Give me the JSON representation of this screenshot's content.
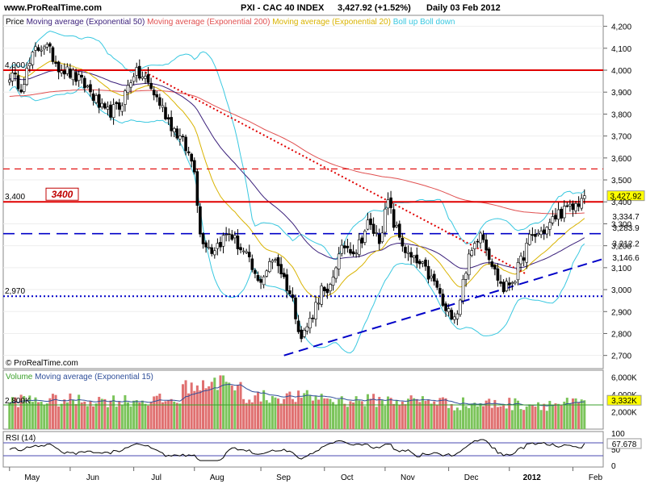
{
  "header": {
    "site": "www.ProRealTime.com",
    "instrument": "PXI - CAC 40 INDEX",
    "last": "3,427.92 (+1.52%)",
    "period": "Daily  03 Feb 2012"
  },
  "copyright": "© ProRealTime.com",
  "colors": {
    "candle_up": "#ffffff",
    "candle_down": "#000000",
    "ema50": "#3a1f7a",
    "ema200": "#e05050",
    "ema20": "#d9b300",
    "boll": "#39c8e0",
    "res_line": "#e00000",
    "support_blue": "#0000c8",
    "vol_up": "#7bc45a",
    "vol_down": "#e07070",
    "vol_ema": "#2f4f9a",
    "rsi": "#000000"
  },
  "legend": {
    "price": [
      {
        "text": "Price",
        "color": "#000000"
      },
      {
        "text": "Moving average (Exponential 50)",
        "color": "#3a1f7a"
      },
      {
        "text": "Moving average (Exponential 200)",
        "color": "#e05050"
      },
      {
        "text": "Moving average (Exponential 20)",
        "color": "#d9b300"
      },
      {
        "text": "Boll up Boll down",
        "color": "#39c8e0"
      }
    ],
    "volume": [
      {
        "text": "Volume",
        "color": "#3aa02a"
      },
      {
        "text": "Moving average (Exponential 15)",
        "color": "#2f4f9a"
      }
    ],
    "rsi": "RSI (14)"
  },
  "chart_data": {
    "type": "candlestick",
    "price_axis": {
      "ylim": [
        2640,
        4250
      ],
      "ticks": [
        "4,200",
        "4,100",
        "4,000",
        "3,900",
        "3,800",
        "3,700",
        "3,600",
        "3,500",
        "3,400",
        "3,300",
        "3,200",
        "3,100",
        "3,000",
        "2,900",
        "2,800",
        "2,700"
      ],
      "tick_values": [
        4200,
        4100,
        4000,
        3900,
        3800,
        3700,
        3600,
        3500,
        3400,
        3300,
        3200,
        3100,
        3000,
        2900,
        2800,
        2700
      ]
    },
    "months": [
      {
        "label": "May",
        "day": 0
      },
      {
        "label": "Jun",
        "day": 21
      },
      {
        "label": "Jul",
        "day": 43
      },
      {
        "label": "Aug",
        "day": 64
      },
      {
        "label": "Sep",
        "day": 87
      },
      {
        "label": "Oct",
        "day": 109
      },
      {
        "label": "Nov",
        "day": 130
      },
      {
        "label": "Dec",
        "day": 152
      },
      {
        "label": "2012",
        "day": 173
      },
      {
        "label": "Feb",
        "day": 195
      }
    ],
    "days": 199,
    "close_anchors": [
      [
        0,
        3980
      ],
      [
        4,
        3930
      ],
      [
        9,
        4090
      ],
      [
        12,
        4120
      ],
      [
        17,
        4020
      ],
      [
        22,
        3975
      ],
      [
        27,
        3920
      ],
      [
        33,
        3800
      ],
      [
        38,
        3830
      ],
      [
        43,
        3990
      ],
      [
        47,
        3960
      ],
      [
        52,
        3850
      ],
      [
        56,
        3750
      ],
      [
        60,
        3670
      ],
      [
        64,
        3560
      ],
      [
        66,
        3250
      ],
      [
        70,
        3180
      ],
      [
        76,
        3260
      ],
      [
        82,
        3150
      ],
      [
        86,
        3030
      ],
      [
        92,
        3150
      ],
      [
        98,
        2950
      ],
      [
        101,
        2780
      ],
      [
        104,
        2860
      ],
      [
        108,
        3000
      ],
      [
        110,
        2960
      ],
      [
        113,
        3120
      ],
      [
        116,
        3200
      ],
      [
        120,
        3180
      ],
      [
        124,
        3300
      ],
      [
        128,
        3230
      ],
      [
        131,
        3400
      ],
      [
        133,
        3300
      ],
      [
        138,
        3150
      ],
      [
        143,
        3100
      ],
      [
        148,
        3010
      ],
      [
        151,
        2890
      ],
      [
        155,
        2900
      ],
      [
        158,
        3100
      ],
      [
        163,
        3280
      ],
      [
        168,
        3080
      ],
      [
        171,
        3000
      ],
      [
        175,
        3060
      ],
      [
        180,
        3230
      ],
      [
        186,
        3280
      ],
      [
        190,
        3350
      ],
      [
        195,
        3370
      ],
      [
        199,
        3428
      ]
    ],
    "levels": [
      {
        "name": "resistance-4000",
        "value": 4000,
        "label": "4,000",
        "style": "solid"
      },
      {
        "name": "resistance-dashed",
        "value": 3550,
        "label": "",
        "style": "dashed"
      },
      {
        "name": "resistance-3400",
        "value": 3400,
        "label": "3,400",
        "style": "solid"
      },
      {
        "name": "support-dashed-blue",
        "value": 3255,
        "label": "",
        "style": "dashed"
      },
      {
        "name": "support-2970",
        "value": 2970,
        "label": "2,970",
        "style": "dotted"
      }
    ],
    "annotation_box": "3400",
    "trend_down": {
      "from": [
        47,
        3990
      ],
      "to": [
        179,
        3070
      ]
    },
    "trend_up": {
      "from": [
        95,
        2700
      ],
      "to": [
        199,
        3140
      ]
    },
    "right_labels": [
      {
        "text": "3,427.92",
        "value": 3427.92,
        "bg": "#ffff00",
        "color": "#000000"
      },
      {
        "text": "3,334.7",
        "value": 3334.7,
        "bg": "#ffffff",
        "color": "#e05050"
      },
      {
        "text": "3,283.9",
        "value": 3283.9,
        "bg": "#ffffff",
        "color": "#d9b300"
      },
      {
        "text": "3,212.2",
        "value": 3212.2,
        "bg": "#ffffff",
        "color": "#3a1f7a"
      },
      {
        "text": "3,146.6",
        "value": 3146.6,
        "bg": "#ffffff",
        "color": "#39c8e0"
      }
    ],
    "volume_axis": {
      "ticks": [
        "6,000K",
        "4,000K",
        "2,000K"
      ],
      "tick_values": [
        6000,
        4000,
        2000
      ],
      "ylim": [
        0,
        6800
      ]
    },
    "volume_level": {
      "label": "2,800K",
      "value": 2800
    },
    "volume_last": {
      "text": "3,332K",
      "value": 3332
    },
    "rsi_axis": {
      "ticks": [
        "100",
        "50",
        "0"
      ],
      "tick_values": [
        100,
        50,
        0
      ],
      "ylim": [
        0,
        100
      ]
    },
    "rsi_levels": [
      70,
      30
    ],
    "rsi_last": {
      "text": "67.678",
      "value": 67.678
    }
  }
}
